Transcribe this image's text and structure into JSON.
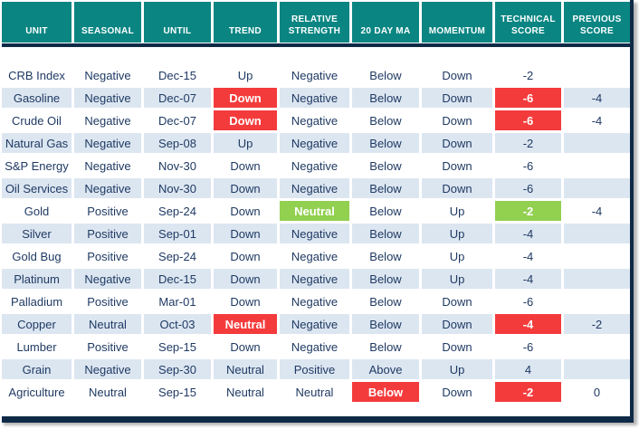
{
  "colors": {
    "header_bg": "#0a8582",
    "dark_border": "#0e2a47",
    "body_text": "#1f3a63",
    "row_alt_bg": "#dce6f1",
    "highlight_red": "#f43b3c",
    "highlight_green": "#92d050"
  },
  "chart_data": {
    "type": "table",
    "columns": [
      {
        "key": "unit",
        "label": "UNIT"
      },
      {
        "key": "seasonal",
        "label": "SEASONAL"
      },
      {
        "key": "until",
        "label": "UNTIL"
      },
      {
        "key": "trend",
        "label": "TREND"
      },
      {
        "key": "relative_strength",
        "label": "RELATIVE STRENGTH"
      },
      {
        "key": "ma_20_day",
        "label": "20 DAY MA"
      },
      {
        "key": "momentum",
        "label": "MOMENTUM"
      },
      {
        "key": "technical_score",
        "label": "TECHNICAL SCORE"
      },
      {
        "key": "previous_score",
        "label": "PREVIOUS SCORE"
      }
    ],
    "rows": [
      {
        "unit": "CRB Index",
        "seasonal": "Negative",
        "until": "Dec-15",
        "trend": "Up",
        "relative_strength": "Negative",
        "ma_20_day": "Below",
        "momentum": "Down",
        "technical_score": "-2",
        "previous_score": "",
        "styles": {}
      },
      {
        "unit": "Gasoline",
        "seasonal": "Negative",
        "until": "Dec-07",
        "trend": "Down",
        "relative_strength": "Negative",
        "ma_20_day": "Below",
        "momentum": "Down",
        "technical_score": "-6",
        "previous_score": "-4",
        "styles": {
          "trend": "red",
          "technical_score": "red"
        }
      },
      {
        "unit": "Crude Oil",
        "seasonal": "Negative",
        "until": "Dec-07",
        "trend": "Down",
        "relative_strength": "Negative",
        "ma_20_day": "Below",
        "momentum": "Down",
        "technical_score": "-6",
        "previous_score": "-4",
        "styles": {
          "trend": "red",
          "technical_score": "red"
        }
      },
      {
        "unit": "Natural Gas",
        "seasonal": "Negative",
        "until": "Sep-08",
        "trend": "Up",
        "relative_strength": "Negative",
        "ma_20_day": "Below",
        "momentum": "Down",
        "technical_score": "-2",
        "previous_score": "",
        "styles": {}
      },
      {
        "unit": "S&P Energy",
        "seasonal": "Negative",
        "until": "Nov-30",
        "trend": "Down",
        "relative_strength": "Negative",
        "ma_20_day": "Below",
        "momentum": "Down",
        "technical_score": "-6",
        "previous_score": "",
        "styles": {}
      },
      {
        "unit": "Oil Services",
        "seasonal": "Negative",
        "until": "Nov-30",
        "trend": "Down",
        "relative_strength": "Negative",
        "ma_20_day": "Below",
        "momentum": "Down",
        "technical_score": "-6",
        "previous_score": "",
        "styles": {}
      },
      {
        "unit": "Gold",
        "seasonal": "Positive",
        "until": "Sep-24",
        "trend": "Down",
        "relative_strength": "Neutral",
        "ma_20_day": "Below",
        "momentum": "Up",
        "technical_score": "-2",
        "previous_score": "-4",
        "styles": {
          "relative_strength": "green",
          "technical_score": "green"
        }
      },
      {
        "unit": "Silver",
        "seasonal": "Positive",
        "until": "Sep-01",
        "trend": "Down",
        "relative_strength": "Negative",
        "ma_20_day": "Below",
        "momentum": "Up",
        "technical_score": "-4",
        "previous_score": "",
        "styles": {}
      },
      {
        "unit": "Gold Bug",
        "seasonal": "Positive",
        "until": "Sep-24",
        "trend": "Down",
        "relative_strength": "Negative",
        "ma_20_day": "Below",
        "momentum": "Up",
        "technical_score": "-4",
        "previous_score": "",
        "styles": {}
      },
      {
        "unit": "Platinum",
        "seasonal": "Negative",
        "until": "Dec-15",
        "trend": "Down",
        "relative_strength": "Negative",
        "ma_20_day": "Below",
        "momentum": "Up",
        "technical_score": "-4",
        "previous_score": "",
        "styles": {}
      },
      {
        "unit": "Palladium",
        "seasonal": "Positive",
        "until": "Mar-01",
        "trend": "Down",
        "relative_strength": "Negative",
        "ma_20_day": "Below",
        "momentum": "Down",
        "technical_score": "-6",
        "previous_score": "",
        "styles": {}
      },
      {
        "unit": "Copper",
        "seasonal": "Neutral",
        "until": "Oct-03",
        "trend": "Neutral",
        "relative_strength": "Negative",
        "ma_20_day": "Below",
        "momentum": "Down",
        "technical_score": "-4",
        "previous_score": "-2",
        "styles": {
          "trend": "red",
          "technical_score": "red"
        }
      },
      {
        "unit": "Lumber",
        "seasonal": "Positive",
        "until": "Sep-15",
        "trend": "Down",
        "relative_strength": "Negative",
        "ma_20_day": "Below",
        "momentum": "Down",
        "technical_score": "-6",
        "previous_score": "",
        "styles": {}
      },
      {
        "unit": "Grain",
        "seasonal": "Negative",
        "until": "Sep-30",
        "trend": "Neutral",
        "relative_strength": "Positive",
        "ma_20_day": "Above",
        "momentum": "Up",
        "technical_score": "4",
        "previous_score": "",
        "styles": {}
      },
      {
        "unit": "Agriculture",
        "seasonal": "Neutral",
        "until": "Sep-15",
        "trend": "Neutral",
        "relative_strength": "Neutral",
        "ma_20_day": "Below",
        "momentum": "Down",
        "technical_score": "-2",
        "previous_score": "0",
        "styles": {
          "ma_20_day": "red",
          "technical_score": "red"
        }
      }
    ]
  }
}
